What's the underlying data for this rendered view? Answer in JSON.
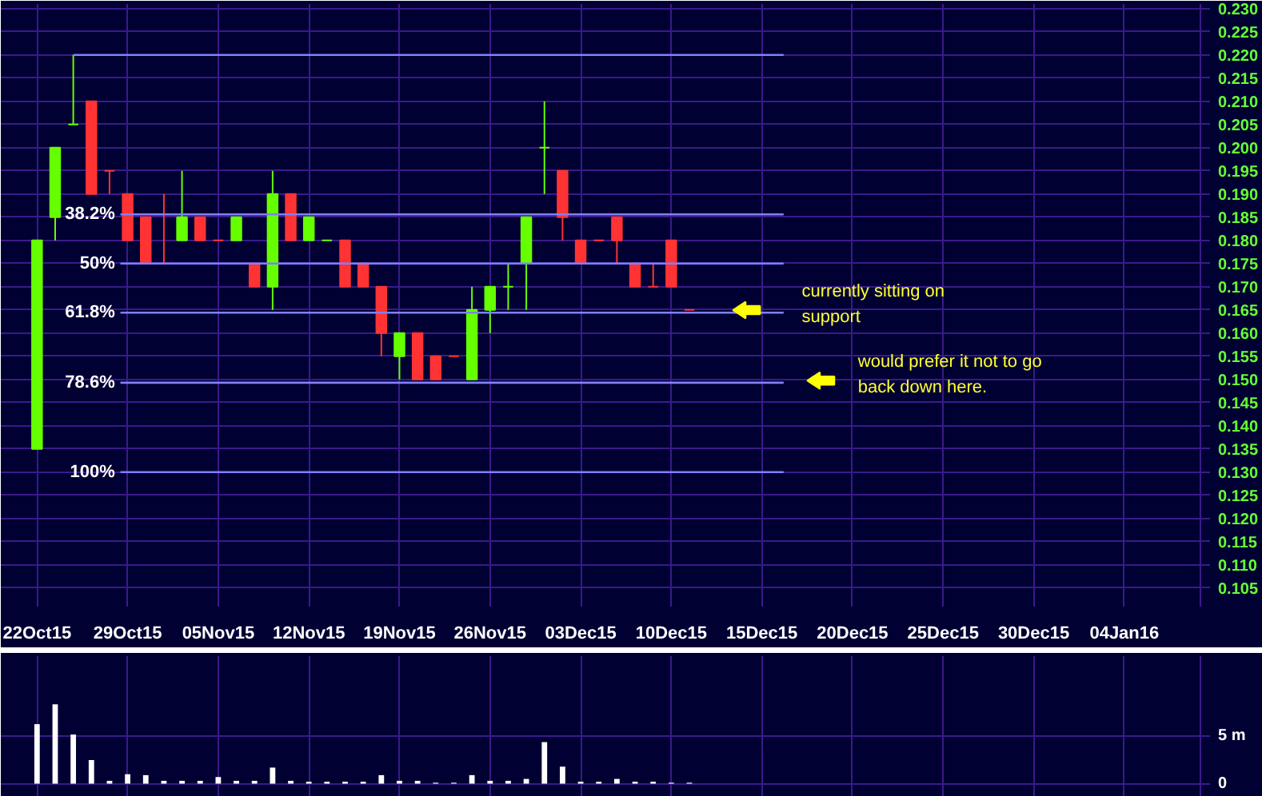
{
  "chart_data": [
    {
      "type": "candlestick",
      "categories": [
        "22Oct15",
        null,
        null,
        null,
        null,
        "29Oct15",
        null,
        null,
        null,
        null,
        "05Nov15",
        null,
        null,
        null,
        null,
        "12Nov15",
        null,
        null,
        null,
        null,
        "19Nov15",
        null,
        null,
        null,
        null,
        "26Nov15",
        null,
        null,
        null,
        null,
        "03Dec15",
        null,
        null,
        null,
        null,
        "10Dec15",
        null,
        null,
        null,
        null,
        "15Dec15",
        null,
        null,
        null,
        null,
        "20Dec15",
        null,
        null,
        null,
        null,
        "25Dec15",
        null,
        null,
        null,
        null,
        "30Dec15",
        null,
        null,
        null,
        null,
        "04Jan16",
        null,
        null,
        null,
        null
      ],
      "ohlc": [
        [
          0.135,
          0.18,
          0.135,
          0.18
        ],
        [
          0.185,
          0.2,
          0.18,
          0.2
        ],
        [
          0.205,
          0.22,
          0.205,
          0.205
        ],
        [
          0.21,
          0.21,
          0.19,
          0.19
        ],
        [
          0.195,
          0.195,
          0.19,
          0.195
        ],
        [
          0.19,
          0.19,
          0.18,
          0.18
        ],
        [
          0.185,
          0.185,
          0.175,
          0.175
        ],
        [
          0.175,
          0.19,
          0.175,
          0.175
        ],
        [
          0.18,
          0.195,
          0.18,
          0.185
        ],
        [
          0.185,
          0.185,
          0.18,
          0.18
        ],
        [
          0.18,
          0.18,
          0.18,
          0.18
        ],
        [
          0.18,
          0.185,
          0.18,
          0.185
        ],
        [
          0.175,
          0.175,
          0.17,
          0.17
        ],
        [
          0.17,
          0.195,
          0.165,
          0.19
        ],
        [
          0.19,
          0.19,
          0.18,
          0.18
        ],
        [
          0.18,
          0.185,
          0.18,
          0.185
        ],
        [
          0.18,
          0.18,
          0.18,
          0.18
        ],
        [
          0.18,
          0.18,
          0.17,
          0.17
        ],
        [
          0.175,
          0.175,
          0.17,
          0.17
        ],
        [
          0.17,
          0.17,
          0.155,
          0.16
        ],
        [
          0.155,
          0.16,
          0.15,
          0.16
        ],
        [
          0.16,
          0.16,
          0.15,
          0.15
        ],
        [
          0.155,
          0.155,
          0.15,
          0.15
        ],
        [
          0.155,
          0.155,
          0.155,
          0.155
        ],
        [
          0.15,
          0.17,
          0.15,
          0.165
        ],
        [
          0.165,
          0.17,
          0.16,
          0.17
        ],
        [
          0.17,
          0.175,
          0.165,
          0.17
        ],
        [
          0.175,
          0.185,
          0.165,
          0.185
        ],
        [
          0.2,
          0.21,
          0.19,
          0.2
        ],
        [
          0.195,
          0.195,
          0.18,
          0.185
        ],
        [
          0.18,
          0.18,
          0.175,
          0.175
        ],
        [
          0.18,
          0.18,
          0.18,
          0.18
        ],
        [
          0.185,
          0.185,
          0.175,
          0.18
        ],
        [
          0.175,
          0.175,
          0.17,
          0.17
        ],
        [
          0.17,
          0.175,
          0.17,
          0.17
        ],
        [
          0.18,
          0.18,
          0.17,
          0.17
        ],
        [
          0.165,
          0.165,
          0.165,
          0.165
        ],
        null,
        null,
        null,
        null,
        null,
        null,
        null,
        null,
        null,
        null,
        null,
        null,
        null,
        null,
        null,
        null,
        null,
        null,
        null,
        null,
        null,
        null,
        null,
        null,
        null,
        null,
        null,
        null
      ],
      "colors": [
        "#66ff00",
        "#66ff00",
        "#66ff00",
        "#ff3333",
        "#ff3333",
        "#ff3333",
        "#ff3333",
        "#ff3333",
        "#66ff00",
        "#ff3333",
        "#ff3333",
        "#66ff00",
        "#ff3333",
        "#66ff00",
        "#ff3333",
        "#66ff00",
        "#66ff00",
        "#ff3333",
        "#ff3333",
        "#ff3333",
        "#66ff00",
        "#ff3333",
        "#ff3333",
        "#ff3333",
        "#66ff00",
        "#66ff00",
        "#66ff00",
        "#66ff00",
        "#66ff00",
        "#ff3333",
        "#ff3333",
        "#ff3333",
        "#ff3333",
        "#ff3333",
        "#ff3333",
        "#ff3333",
        "#ff3333",
        null,
        null,
        null,
        null,
        null,
        null,
        null,
        null,
        null,
        null,
        null,
        null,
        null,
        null,
        null,
        null,
        null,
        null,
        null,
        null,
        null,
        null,
        null,
        null,
        null,
        null,
        null,
        null
      ],
      "ylim": [
        0.101,
        0.231
      ],
      "yticks": [
        0.105,
        {
          "value": 0.11,
          "label": "0.110"
        },
        0.115,
        {
          "value": 0.12,
          "label": "0.120"
        },
        0.125,
        {
          "value": 0.13,
          "label": "0.130"
        },
        0.135,
        {
          "value": 0.14,
          "label": "0.140"
        },
        0.145,
        {
          "value": 0.15,
          "label": "0.150"
        },
        0.155,
        {
          "value": 0.16,
          "label": "0.160"
        },
        0.165,
        {
          "value": 0.17,
          "label": "0.170"
        },
        0.175,
        {
          "value": 0.18,
          "label": "0.180"
        },
        0.185,
        {
          "value": 0.19,
          "label": "0.190"
        },
        0.195,
        {
          "value": 0.2,
          "label": "0.200"
        },
        0.205,
        {
          "value": 0.21,
          "label": "0.210"
        },
        0.215,
        {
          "value": 0.22,
          "label": "0.220"
        },
        0.225,
        {
          "value": 0.23,
          "label": "0.230"
        }
      ],
      "grid": true,
      "ref_lines": [
        {
          "axis": "y",
          "value": 0.22,
          "color": "#8080ff"
        },
        {
          "axis": "y",
          "value": 0.1856,
          "color": "#8080ff"
        },
        {
          "axis": "y",
          "value": 0.175,
          "color": "#8080ff"
        },
        {
          "axis": "y",
          "value": 0.1644,
          "color": "#8080ff"
        },
        {
          "axis": "y",
          "value": 0.1493,
          "color": "#8080ff"
        },
        {
          "axis": "y",
          "value": 0.13,
          "color": "#8080ff"
        }
      ],
      "annotations": [
        "38.2%",
        "50%",
        "61.8%",
        "78.6%",
        "100%",
        "currently sitting on support",
        "would prefer it not to go back down here."
      ]
    },
    {
      "type": "bar",
      "categories": [
        null,
        null,
        null,
        null,
        null,
        null,
        null,
        null,
        null,
        null,
        null,
        null,
        null,
        null,
        null,
        null,
        null,
        null,
        null,
        null,
        null,
        null,
        null,
        null,
        null,
        null,
        null,
        null,
        null,
        null,
        null,
        null,
        null,
        null,
        null,
        null,
        null,
        null,
        null,
        null,
        null,
        null,
        null,
        null,
        null,
        null,
        null,
        null,
        null,
        null,
        null,
        null,
        null,
        null,
        null,
        null,
        null,
        null,
        null,
        null,
        null,
        null,
        null,
        null,
        null
      ],
      "values": [
        6.3,
        8.4,
        5.2,
        2.5,
        0.3,
        1.0,
        0.9,
        0.3,
        0.3,
        0.3,
        0.7,
        0.3,
        0.3,
        1.7,
        0.3,
        0.2,
        0.2,
        0.2,
        0.2,
        0.9,
        0.3,
        0.3,
        0.1,
        0.1,
        0.9,
        0.3,
        0.3,
        0.5,
        4.4,
        1.8,
        0.2,
        0.2,
        0.5,
        0.2,
        0.2,
        0.1,
        0.1,
        null,
        null,
        null,
        null,
        null,
        null,
        null,
        null,
        null,
        null,
        null,
        null,
        null,
        null,
        null,
        null,
        null,
        null,
        null,
        null,
        null,
        null,
        null,
        null,
        null,
        null,
        null,
        null
      ],
      "color": "#ffffff",
      "ylim": [
        -1.9,
        13.5
      ],
      "yticks": [
        0,
        {
          "value": 5,
          "label": "5 m"
        }
      ],
      "grid": true,
      "tick_labels": "y"
    }
  ]
}
